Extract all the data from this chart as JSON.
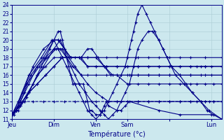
{
  "xlabel": "Température (°c)",
  "ylim": [
    11,
    24
  ],
  "xlim": [
    0,
    100
  ],
  "yticks": [
    11,
    12,
    13,
    14,
    15,
    16,
    17,
    18,
    19,
    20,
    21,
    22,
    23,
    24
  ],
  "xtick_labels": [
    "Jeu",
    "Dim",
    "Ven",
    "Sam",
    "",
    "Lun"
  ],
  "xtick_positions": [
    0,
    20,
    40,
    55,
    75,
    95
  ],
  "background_color": "#cce8ee",
  "grid_color": "#aaccd4",
  "line_color": "#000088",
  "series": [
    {
      "y": [
        11.5,
        11.5,
        12,
        12,
        12.5,
        13,
        13,
        13.5,
        14,
        15,
        16,
        17,
        18,
        19,
        20,
        21,
        21,
        20,
        19,
        18,
        17,
        16,
        15,
        15,
        15,
        15,
        14,
        13,
        12,
        12,
        11.5,
        11.5,
        12,
        12.5,
        13,
        12.5,
        12,
        12,
        12.5,
        13,
        12,
        11.5,
        11.5
      ],
      "x": [
        0,
        1,
        2,
        3,
        4,
        5,
        6,
        7,
        8,
        10,
        12,
        14,
        16,
        18,
        20,
        22,
        23,
        24,
        25,
        26,
        27,
        28,
        29,
        30,
        32,
        34,
        35,
        36,
        37,
        38,
        40,
        42,
        43,
        44,
        45,
        46,
        50,
        52,
        54,
        56,
        70,
        80,
        95
      ],
      "style": "-"
    },
    {
      "y": [
        11.5,
        12,
        13,
        15,
        17,
        19,
        20,
        19,
        18,
        17,
        16,
        15,
        14,
        13.5,
        13,
        13,
        13,
        13,
        13,
        13,
        13,
        13,
        13,
        13,
        13,
        13,
        13,
        13
      ],
      "x": [
        0,
        2,
        5,
        10,
        15,
        20,
        23,
        25,
        27,
        30,
        33,
        36,
        40,
        43,
        46,
        50,
        55,
        60,
        65,
        70,
        75,
        80,
        85,
        90,
        92,
        94,
        96,
        100
      ],
      "style": "-"
    },
    {
      "y": [
        11.5,
        13,
        15,
        17,
        18,
        19,
        19,
        18,
        17,
        16,
        16,
        16,
        16,
        16,
        16,
        16,
        16,
        16,
        16,
        16,
        16,
        16,
        16,
        16
      ],
      "x": [
        0,
        3,
        7,
        13,
        17,
        21,
        23,
        26,
        29,
        33,
        36,
        40,
        45,
        50,
        55,
        60,
        65,
        70,
        75,
        80,
        85,
        90,
        95,
        100
      ],
      "style": "-"
    },
    {
      "y": [
        11.5,
        13,
        16,
        18,
        20,
        20,
        19,
        18,
        18,
        17,
        17,
        17,
        17,
        17,
        17,
        17,
        17,
        17,
        17,
        17,
        17,
        17,
        17,
        17
      ],
      "x": [
        0,
        3,
        8,
        14,
        19,
        22,
        25,
        28,
        33,
        36,
        40,
        45,
        50,
        55,
        60,
        65,
        70,
        75,
        80,
        85,
        90,
        92,
        95,
        100
      ],
      "style": "-"
    },
    {
      "y": [
        11.5,
        13,
        16,
        18,
        20,
        20,
        19,
        18,
        18,
        18,
        18,
        18,
        18,
        18,
        18,
        18,
        18,
        18,
        18,
        18,
        18,
        18
      ],
      "x": [
        0,
        4,
        9,
        15,
        20,
        22,
        25,
        28,
        33,
        36,
        40,
        45,
        50,
        55,
        60,
        65,
        70,
        75,
        80,
        85,
        92,
        100
      ],
      "style": "-"
    },
    {
      "y": [
        11.5,
        12,
        13,
        14,
        15,
        17,
        18,
        19,
        19,
        19,
        18,
        17,
        16,
        15,
        14,
        13,
        12.5,
        12,
        11.5,
        11,
        11.5,
        12,
        13,
        14,
        15,
        16,
        17,
        18,
        19,
        20,
        21,
        21,
        20,
        19,
        18,
        17,
        16,
        15,
        14,
        13,
        12,
        11.5,
        11
      ],
      "x": [
        0,
        2,
        4,
        6,
        8,
        12,
        16,
        20,
        22,
        24,
        26,
        28,
        30,
        32,
        35,
        38,
        40,
        42,
        44,
        46,
        48,
        50,
        52,
        54,
        56,
        57,
        58,
        59,
        60,
        62,
        65,
        67,
        70,
        72,
        74,
        76,
        80,
        83,
        86,
        90,
        93,
        96,
        100
      ],
      "style": "-"
    },
    {
      "y": [
        11.5,
        12,
        13,
        14,
        16,
        17,
        18,
        18,
        18,
        18,
        18,
        19,
        19,
        18,
        17,
        16,
        16,
        15,
        15,
        15,
        15,
        15,
        15,
        15,
        15,
        15,
        15,
        15
      ],
      "x": [
        0,
        2,
        5,
        8,
        12,
        16,
        20,
        23,
        26,
        30,
        33,
        36,
        38,
        41,
        44,
        47,
        50,
        55,
        60,
        65,
        70,
        75,
        80,
        85,
        88,
        92,
        96,
        100
      ],
      "style": "-"
    },
    {
      "y": [
        11.5,
        12,
        13,
        14,
        15,
        16,
        17,
        18,
        18,
        18,
        18,
        18,
        17,
        16,
        16,
        16,
        16,
        16,
        16,
        16,
        16,
        16,
        16,
        16
      ],
      "x": [
        0,
        2,
        5,
        8,
        12,
        16,
        20,
        24,
        28,
        32,
        36,
        40,
        44,
        48,
        52,
        56,
        60,
        65,
        70,
        75,
        80,
        85,
        92,
        100
      ],
      "style": "-"
    },
    {
      "y": [
        11.5,
        12,
        13,
        14,
        15,
        16,
        17,
        18,
        18,
        18,
        17,
        17,
        17,
        17,
        17,
        17,
        17,
        17,
        17,
        17,
        17,
        17,
        17,
        17
      ],
      "x": [
        0,
        2,
        5,
        8,
        12,
        16,
        20,
        24,
        28,
        32,
        36,
        40,
        45,
        50,
        55,
        60,
        65,
        70,
        75,
        80,
        85,
        88,
        92,
        100
      ],
      "style": "-"
    },
    {
      "y": [
        11.5,
        12,
        12.5,
        13,
        13,
        13,
        13,
        13,
        13,
        13,
        13,
        13,
        13,
        13,
        13,
        13,
        13,
        13,
        13,
        13,
        13,
        13,
        13,
        13
      ],
      "x": [
        0,
        2,
        4,
        6,
        10,
        15,
        20,
        25,
        30,
        35,
        40,
        45,
        50,
        55,
        60,
        65,
        70,
        75,
        80,
        85,
        88,
        92,
        96,
        100
      ],
      "style": "--"
    },
    {
      "y": [
        11.5,
        12,
        14,
        17,
        19,
        20,
        19,
        18,
        17,
        16,
        15,
        14,
        13,
        12,
        11.5,
        11,
        11.5,
        12,
        13,
        14,
        15,
        16,
        17,
        18,
        19,
        20,
        21,
        22,
        23,
        24,
        23,
        22,
        21,
        20,
        19,
        18,
        17,
        16,
        15,
        14,
        13,
        12,
        11
      ],
      "x": [
        0,
        2,
        5,
        10,
        15,
        20,
        22,
        24,
        26,
        28,
        30,
        32,
        34,
        36,
        38,
        40,
        42,
        44,
        46,
        48,
        50,
        52,
        54,
        55,
        56,
        57,
        58,
        59,
        60,
        62,
        64,
        66,
        68,
        70,
        72,
        74,
        76,
        78,
        82,
        86,
        90,
        94,
        100
      ],
      "style": "-"
    }
  ],
  "marker": "+",
  "markersize": 2.5,
  "linewidth": 0.8
}
